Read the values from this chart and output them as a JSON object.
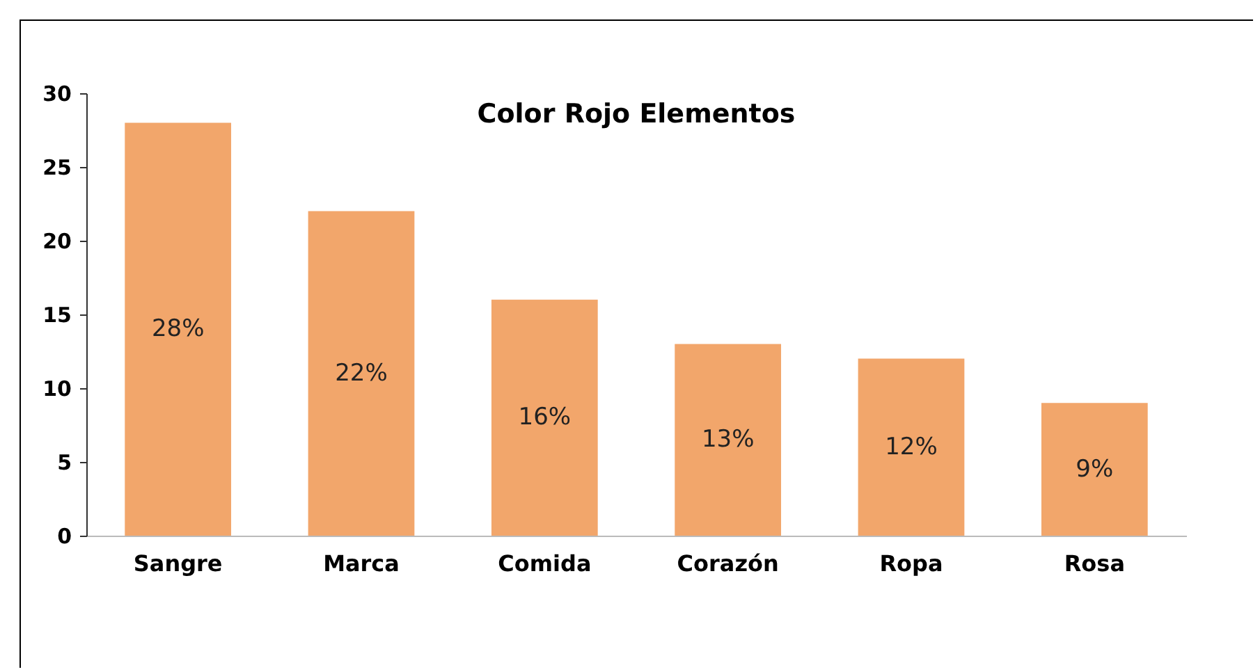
{
  "chart_data": {
    "type": "bar",
    "title": "Color Rojo Elementos",
    "categories": [
      "Sangre",
      "Marca",
      "Comida",
      "Corazón",
      "Ropa",
      "Rosa"
    ],
    "values": [
      28,
      22,
      16,
      13,
      12,
      9
    ],
    "value_labels": [
      "28%",
      "22%",
      "16%",
      "13%",
      "12%",
      "9%"
    ],
    "color": "#f2a66b",
    "ylim": [
      0,
      30
    ],
    "yticks": [
      0,
      5,
      10,
      15,
      20,
      25,
      30
    ],
    "grid": false
  }
}
